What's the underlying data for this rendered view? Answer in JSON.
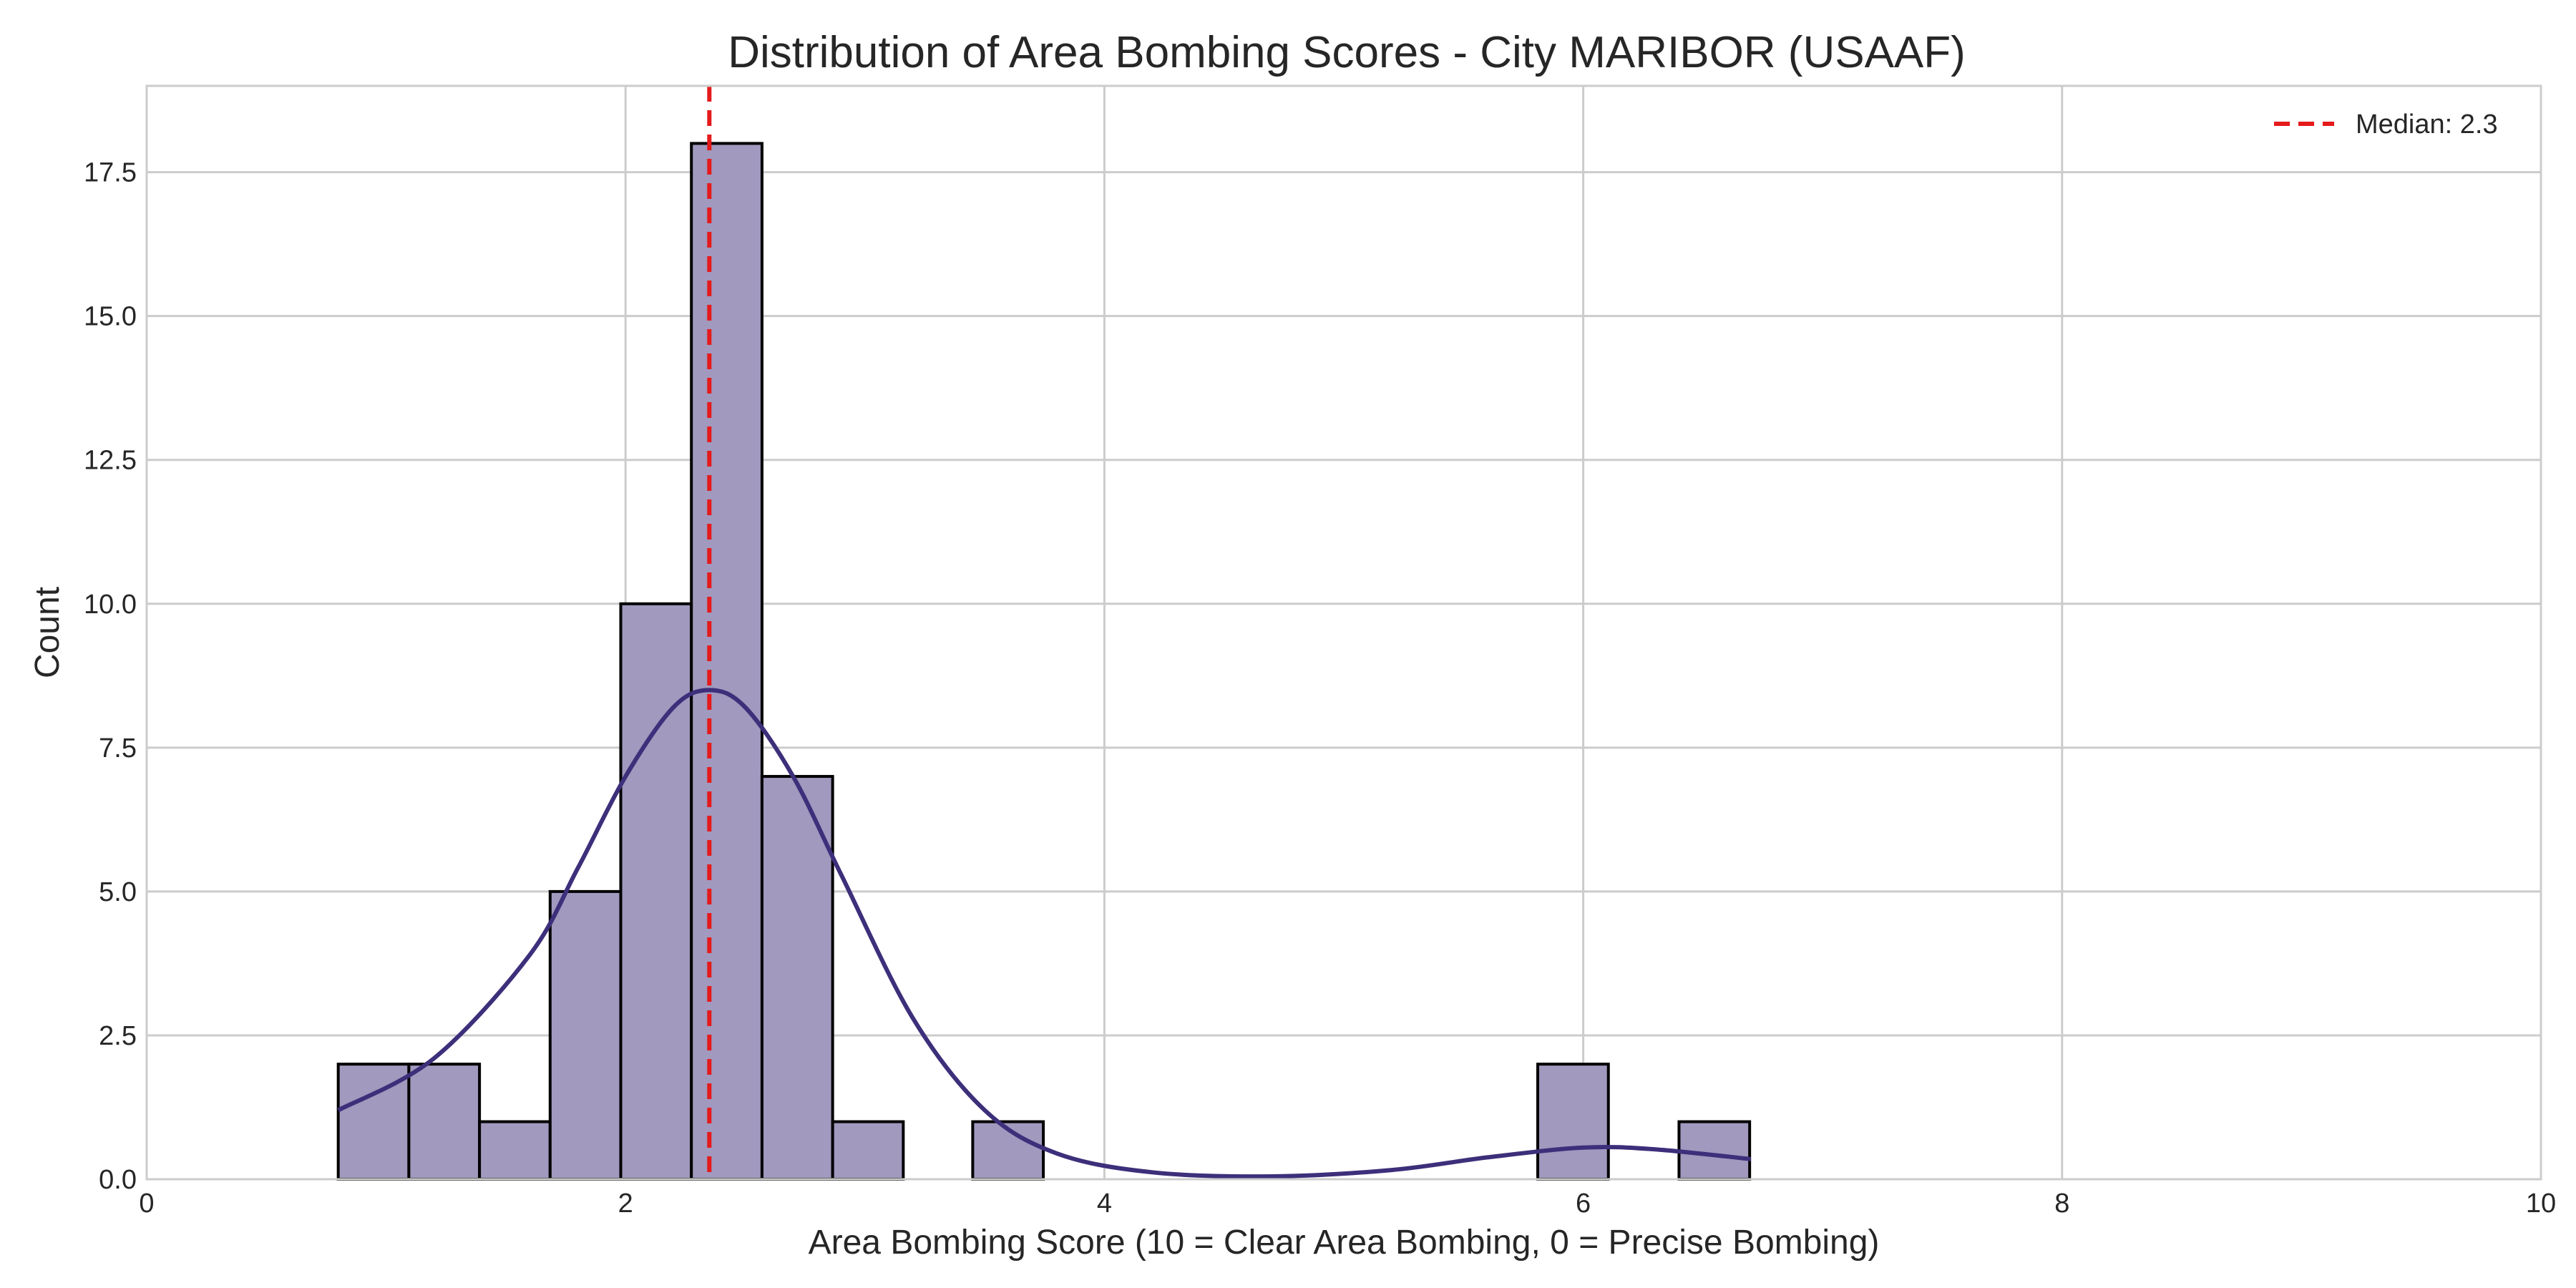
{
  "chart_data": {
    "type": "bar",
    "title": "Distribution of Area Bombing Scores - City MARIBOR (USAAF)",
    "xlabel": "Area Bombing Score (10 = Clear Area Bombing, 0 = Precise Bombing)",
    "ylabel": "Count",
    "xlim": [
      0,
      10
    ],
    "ylim": [
      0,
      19
    ],
    "xticks": [
      0,
      2,
      4,
      6,
      8,
      10
    ],
    "xtick_labels": [
      "0",
      "2",
      "4",
      "6",
      "8",
      "10"
    ],
    "yticks": [
      0,
      2.5,
      5,
      7.5,
      10,
      12.5,
      15,
      17.5
    ],
    "ytick_labels": [
      "0.0",
      "2.5",
      "5.0",
      "7.5",
      "10.0",
      "12.5",
      "15.0",
      "17.5"
    ],
    "grid": true,
    "bins": [
      {
        "x0": 0.8,
        "x1": 1.095,
        "count": 2
      },
      {
        "x0": 1.095,
        "x1": 1.39,
        "count": 2
      },
      {
        "x0": 1.39,
        "x1": 1.685,
        "count": 1
      },
      {
        "x0": 1.685,
        "x1": 1.98,
        "count": 5
      },
      {
        "x0": 1.98,
        "x1": 2.275,
        "count": 10
      },
      {
        "x0": 2.275,
        "x1": 2.57,
        "count": 18
      },
      {
        "x0": 2.57,
        "x1": 2.865,
        "count": 7
      },
      {
        "x0": 2.865,
        "x1": 3.16,
        "count": 1
      },
      {
        "x0": 3.45,
        "x1": 3.745,
        "count": 1
      },
      {
        "x0": 5.81,
        "x1": 6.105,
        "count": 2
      },
      {
        "x0": 6.4,
        "x1": 6.695,
        "count": 1
      }
    ],
    "kde": {
      "x": [
        0.8,
        1.2,
        1.6,
        1.8,
        2.0,
        2.2,
        2.35,
        2.5,
        2.7,
        2.9,
        3.2,
        3.5,
        3.8,
        4.2,
        4.7,
        5.2,
        5.6,
        6.0,
        6.3,
        6.7
      ],
      "y": [
        1.2,
        2.1,
        3.9,
        5.4,
        7.0,
        8.2,
        8.5,
        8.2,
        7.0,
        5.3,
        2.8,
        1.2,
        0.45,
        0.12,
        0.05,
        0.16,
        0.38,
        0.55,
        0.52,
        0.35
      ]
    },
    "median": {
      "value": 2.35,
      "label": "Median: 2.3"
    },
    "legend_placement": "top-right",
    "colors": {
      "bar": "#a199be",
      "bar_edge": "#000000",
      "kde": "#3d2f7a",
      "median": "#e41a1c"
    }
  }
}
